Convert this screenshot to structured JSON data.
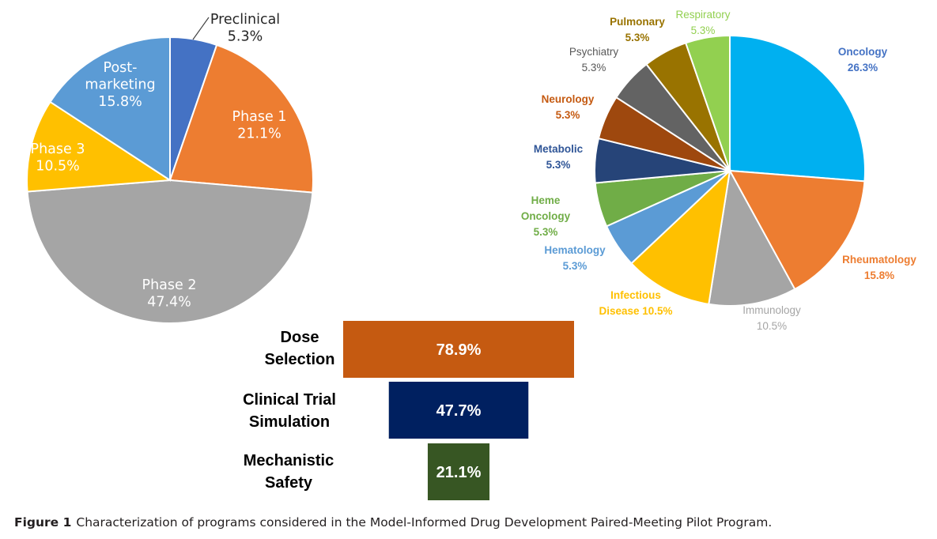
{
  "chart_data": [
    {
      "type": "pie",
      "title": "",
      "slices": [
        {
          "label": "Preclinical",
          "value": 5.3,
          "value_label": "5.3%",
          "color": "#4472c4"
        },
        {
          "label": "Phase 1",
          "value": 21.1,
          "value_label": "21.1%",
          "color": "#ed7d31"
        },
        {
          "label": "Phase 2",
          "value": 47.4,
          "value_label": "47.4%",
          "color": "#a5a5a5"
        },
        {
          "label": "Phase 3",
          "value": 10.5,
          "value_label": "10.5%",
          "color": "#ffc000"
        },
        {
          "label": "Post-marketing",
          "value": 15.8,
          "value_label": "15.8%",
          "color": "#5b9bd5"
        }
      ]
    },
    {
      "type": "pie",
      "title": "",
      "slices": [
        {
          "label": "Oncology",
          "value": 26.3,
          "value_label": "26.3%",
          "color": "#00b0f0",
          "label_color": "#4472c4"
        },
        {
          "label": "Rheumatology",
          "value": 15.8,
          "value_label": "15.8%",
          "color": "#ed7d31",
          "label_color": "#ed7d31"
        },
        {
          "label": "Immunology",
          "value": 10.5,
          "value_label": "10.5%",
          "color": "#a5a5a5",
          "label_color": "#a5a5a5"
        },
        {
          "label": "Infectious Disease",
          "value": 10.5,
          "value_label": "10.5%",
          "color": "#ffc000",
          "label_color": "#ffc000"
        },
        {
          "label": "Hematology",
          "value": 5.3,
          "value_label": "5.3%",
          "color": "#5b9bd5",
          "label_color": "#5b9bd5"
        },
        {
          "label": "Heme Oncology",
          "value": 5.3,
          "value_label": "5.3%",
          "color": "#70ad47",
          "label_color": "#70ad47"
        },
        {
          "label": "Metabolic",
          "value": 5.3,
          "value_label": "5.3%",
          "color": "#264478",
          "label_color": "#2f5597"
        },
        {
          "label": "Neurology",
          "value": 5.3,
          "value_label": "5.3%",
          "color": "#9e480e",
          "label_color": "#c55a11"
        },
        {
          "label": "Psychiatry",
          "value": 5.3,
          "value_label": "5.3%",
          "color": "#636363",
          "label_color": "#595959"
        },
        {
          "label": "Pulmonary",
          "value": 5.3,
          "value_label": "5.3%",
          "color": "#997300",
          "label_color": "#997300"
        },
        {
          "label": "Respiratory",
          "value": 5.3,
          "value_label": "5.3%",
          "color": "#92d050",
          "label_color": "#92d050"
        }
      ]
    },
    {
      "type": "bar",
      "orientation": "horizontal",
      "title": "",
      "categories": [
        "Dose Selection",
        "Clinical Trial Simulation",
        "Mechanistic Safety"
      ],
      "values": [
        78.9,
        47.7,
        21.1
      ],
      "value_labels": [
        "78.9%",
        "47.7%",
        "21.1%"
      ],
      "colors": [
        "#c55a11",
        "#002060",
        "#375623"
      ]
    }
  ],
  "caption": {
    "label": "Figure 1",
    "text": "Characterization of programs considered in the Model-Informed Drug Development Paired-Meeting Pilot Program."
  }
}
